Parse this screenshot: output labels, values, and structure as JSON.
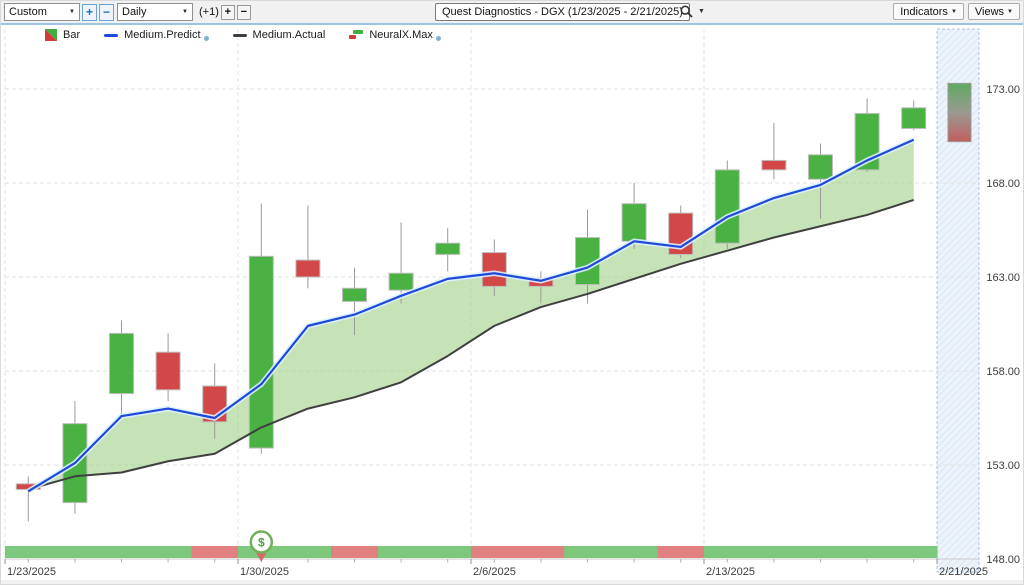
{
  "toolbar": {
    "range_dropdown": "Custom",
    "zoom_in_label": "+",
    "zoom_out_label": "−",
    "period_dropdown": "Daily",
    "offset_label": "(+1)",
    "offset_plus_label": "+",
    "offset_minus_label": "−",
    "symbol_title": "Quest Diagnostics - DGX (1/23/2025 - 2/21/2025)",
    "indicators_button": "Indicators",
    "views_button": "Views"
  },
  "legend": {
    "items": [
      {
        "label": "Bar"
      },
      {
        "label": "Medium.Predict"
      },
      {
        "label": "Medium.Actual"
      },
      {
        "label": "NeuralX.Max"
      }
    ]
  },
  "chart_data": {
    "type": "candlestick",
    "title": "Quest Diagnostics - DGX (1/23/2025 - 2/21/2025)",
    "symbol": "DGX",
    "ylim": [
      148,
      176
    ],
    "grid": "dashed",
    "y_ticks": [
      {
        "value": 148,
        "label": "148.00"
      },
      {
        "value": 153,
        "label": "153.00"
      },
      {
        "value": 158,
        "label": "158.00"
      },
      {
        "value": 163,
        "label": "163.00"
      },
      {
        "value": 168,
        "label": "168.00"
      },
      {
        "value": 173,
        "label": "173.00"
      }
    ],
    "x_labels": [
      {
        "slot": 0,
        "label": "1/23/2025"
      },
      {
        "slot": 5,
        "label": "1/30/2025"
      },
      {
        "slot": 10,
        "label": "2/6/2025"
      },
      {
        "slot": 15,
        "label": "2/13/2025"
      },
      {
        "slot": 20,
        "label": "2/21/2025"
      }
    ],
    "candles": [
      {
        "date": "1/23/2025",
        "open": 152.0,
        "high": 152.4,
        "low": 150.0,
        "close": 151.7
      },
      {
        "date": "1/24/2025",
        "open": 151.0,
        "high": 156.4,
        "low": 150.4,
        "close": 155.2
      },
      {
        "date": "1/27/2025",
        "open": 156.8,
        "high": 160.7,
        "low": 155.7,
        "close": 160.0
      },
      {
        "date": "1/28/2025",
        "open": 159.0,
        "high": 160.0,
        "low": 156.4,
        "close": 157.0
      },
      {
        "date": "1/29/2025",
        "open": 157.2,
        "high": 158.4,
        "low": 154.4,
        "close": 155.3
      },
      {
        "date": "1/30/2025",
        "open": 153.9,
        "high": 166.9,
        "low": 153.6,
        "close": 164.1
      },
      {
        "date": "1/31/2025",
        "open": 163.9,
        "high": 166.8,
        "low": 162.4,
        "close": 163.0
      },
      {
        "date": "2/3/2025",
        "open": 161.7,
        "high": 163.5,
        "low": 159.9,
        "close": 162.4
      },
      {
        "date": "2/4/2025",
        "open": 162.3,
        "high": 165.9,
        "low": 161.6,
        "close": 163.2
      },
      {
        "date": "2/5/2025",
        "open": 164.2,
        "high": 165.6,
        "low": 163.3,
        "close": 164.8
      },
      {
        "date": "2/6/2025",
        "open": 164.3,
        "high": 165.0,
        "low": 162.0,
        "close": 162.5
      },
      {
        "date": "2/7/2025",
        "open": 162.9,
        "high": 163.3,
        "low": 161.6,
        "close": 162.5
      },
      {
        "date": "2/10/2025",
        "open": 162.6,
        "high": 166.6,
        "low": 161.6,
        "close": 165.1
      },
      {
        "date": "2/11/2025",
        "open": 164.9,
        "high": 168.0,
        "low": 164.5,
        "close": 166.9
      },
      {
        "date": "2/12/2025",
        "open": 166.4,
        "high": 166.8,
        "low": 164.0,
        "close": 164.2
      },
      {
        "date": "2/13/2025",
        "open": 164.8,
        "high": 169.2,
        "low": 164.5,
        "close": 168.7
      },
      {
        "date": "2/14/2025",
        "open": 169.2,
        "high": 171.2,
        "low": 168.2,
        "close": 168.7
      },
      {
        "date": "2/18/2025",
        "open": 168.2,
        "high": 170.1,
        "low": 166.1,
        "close": 169.5
      },
      {
        "date": "2/19/2025",
        "open": 168.7,
        "high": 172.5,
        "low": 168.6,
        "close": 171.7
      },
      {
        "date": "2/20/2025",
        "open": 170.9,
        "high": 172.4,
        "low": 170.8,
        "close": 172.0
      }
    ],
    "series": [
      {
        "name": "Medium.Predict",
        "color": "#1f49d8",
        "values": [
          151.6,
          153.1,
          155.6,
          156.0,
          155.5,
          157.3,
          160.4,
          161.0,
          162.0,
          162.9,
          163.2,
          162.8,
          163.5,
          164.9,
          164.6,
          166.2,
          167.2,
          167.9,
          169.2,
          170.3
        ]
      },
      {
        "name": "Medium.Actual",
        "color": "#3f3f3f",
        "values": [
          151.7,
          152.4,
          152.6,
          153.2,
          153.6,
          155.0,
          156.0,
          156.6,
          157.4,
          158.8,
          160.4,
          161.4,
          162.1,
          162.9,
          163.7,
          164.4,
          165.1,
          165.7,
          166.3,
          167.1
        ]
      }
    ],
    "neuralx_max_range": {
      "high": 173.3,
      "low": 170.2
    },
    "sentiment_strip": [
      "green",
      "green",
      "green",
      "green",
      "red",
      "green",
      "green",
      "red",
      "green",
      "green",
      "red",
      "red",
      "green",
      "green",
      "red",
      "green",
      "green",
      "green",
      "green",
      "green"
    ],
    "dollar_marker": {
      "slot": 5,
      "label": "$"
    },
    "colors": {
      "up": "#49b243",
      "down": "#d24848",
      "band": "#9fd187",
      "predict": "#1f49d8",
      "actual": "#3f3f3f",
      "strip_green": "#7dc87d",
      "strip_red": "#e08080",
      "future_zone_fill": "#edf3fa",
      "future_zone_hatch": "#d7e3f1"
    }
  }
}
